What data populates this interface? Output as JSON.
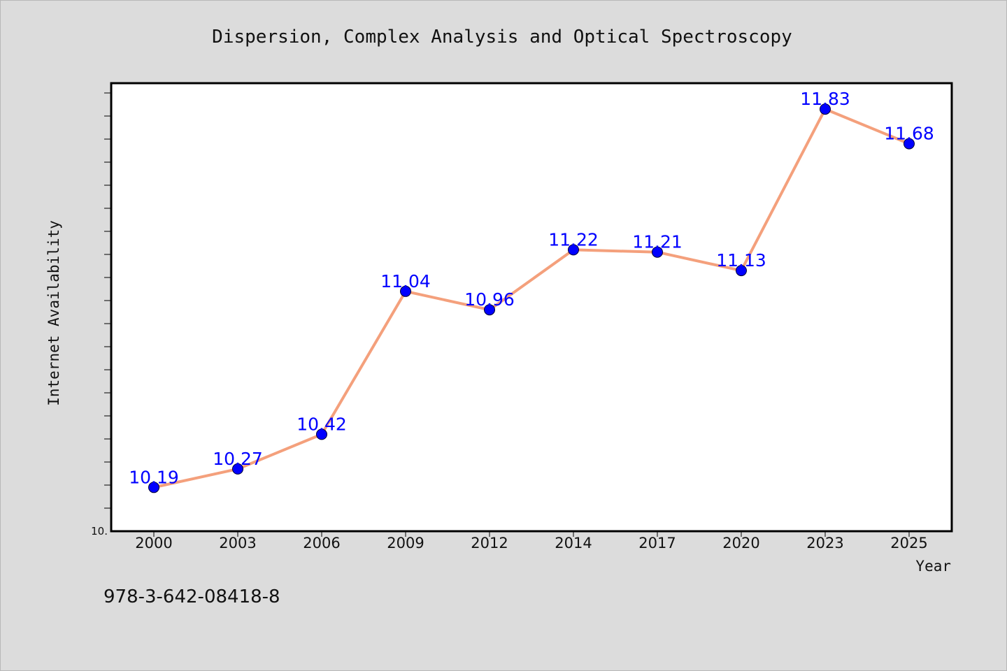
{
  "chart_data": {
    "type": "line",
    "title": "Dispersion, Complex Analysis and Optical Spectroscopy",
    "xlabel": "Year",
    "ylabel": "Internet Availability",
    "categories": [
      "2000",
      "2003",
      "2006",
      "2009",
      "2012",
      "2014",
      "2017",
      "2020",
      "2023",
      "2025"
    ],
    "series": [
      {
        "values": [
          10.19,
          10.27,
          10.42,
          11.04,
          10.96,
          11.22,
          11.21,
          11.13,
          11.83,
          11.68
        ],
        "labels": [
          "10.19",
          "10.27",
          "10.42",
          "11.04",
          "10.96",
          "11.22",
          "11.21",
          "11.13",
          "11.83",
          "11.68"
        ]
      }
    ],
    "ylim": [
      10.0,
      12.0
    ],
    "y_tick_label": "10.",
    "grid": false,
    "legend": "none",
    "line_color": "#f4a07c",
    "marker_color": "#0000ff",
    "label_color": "#0000ff"
  },
  "footer": {
    "isbn": "978-3-642-08418-8"
  }
}
